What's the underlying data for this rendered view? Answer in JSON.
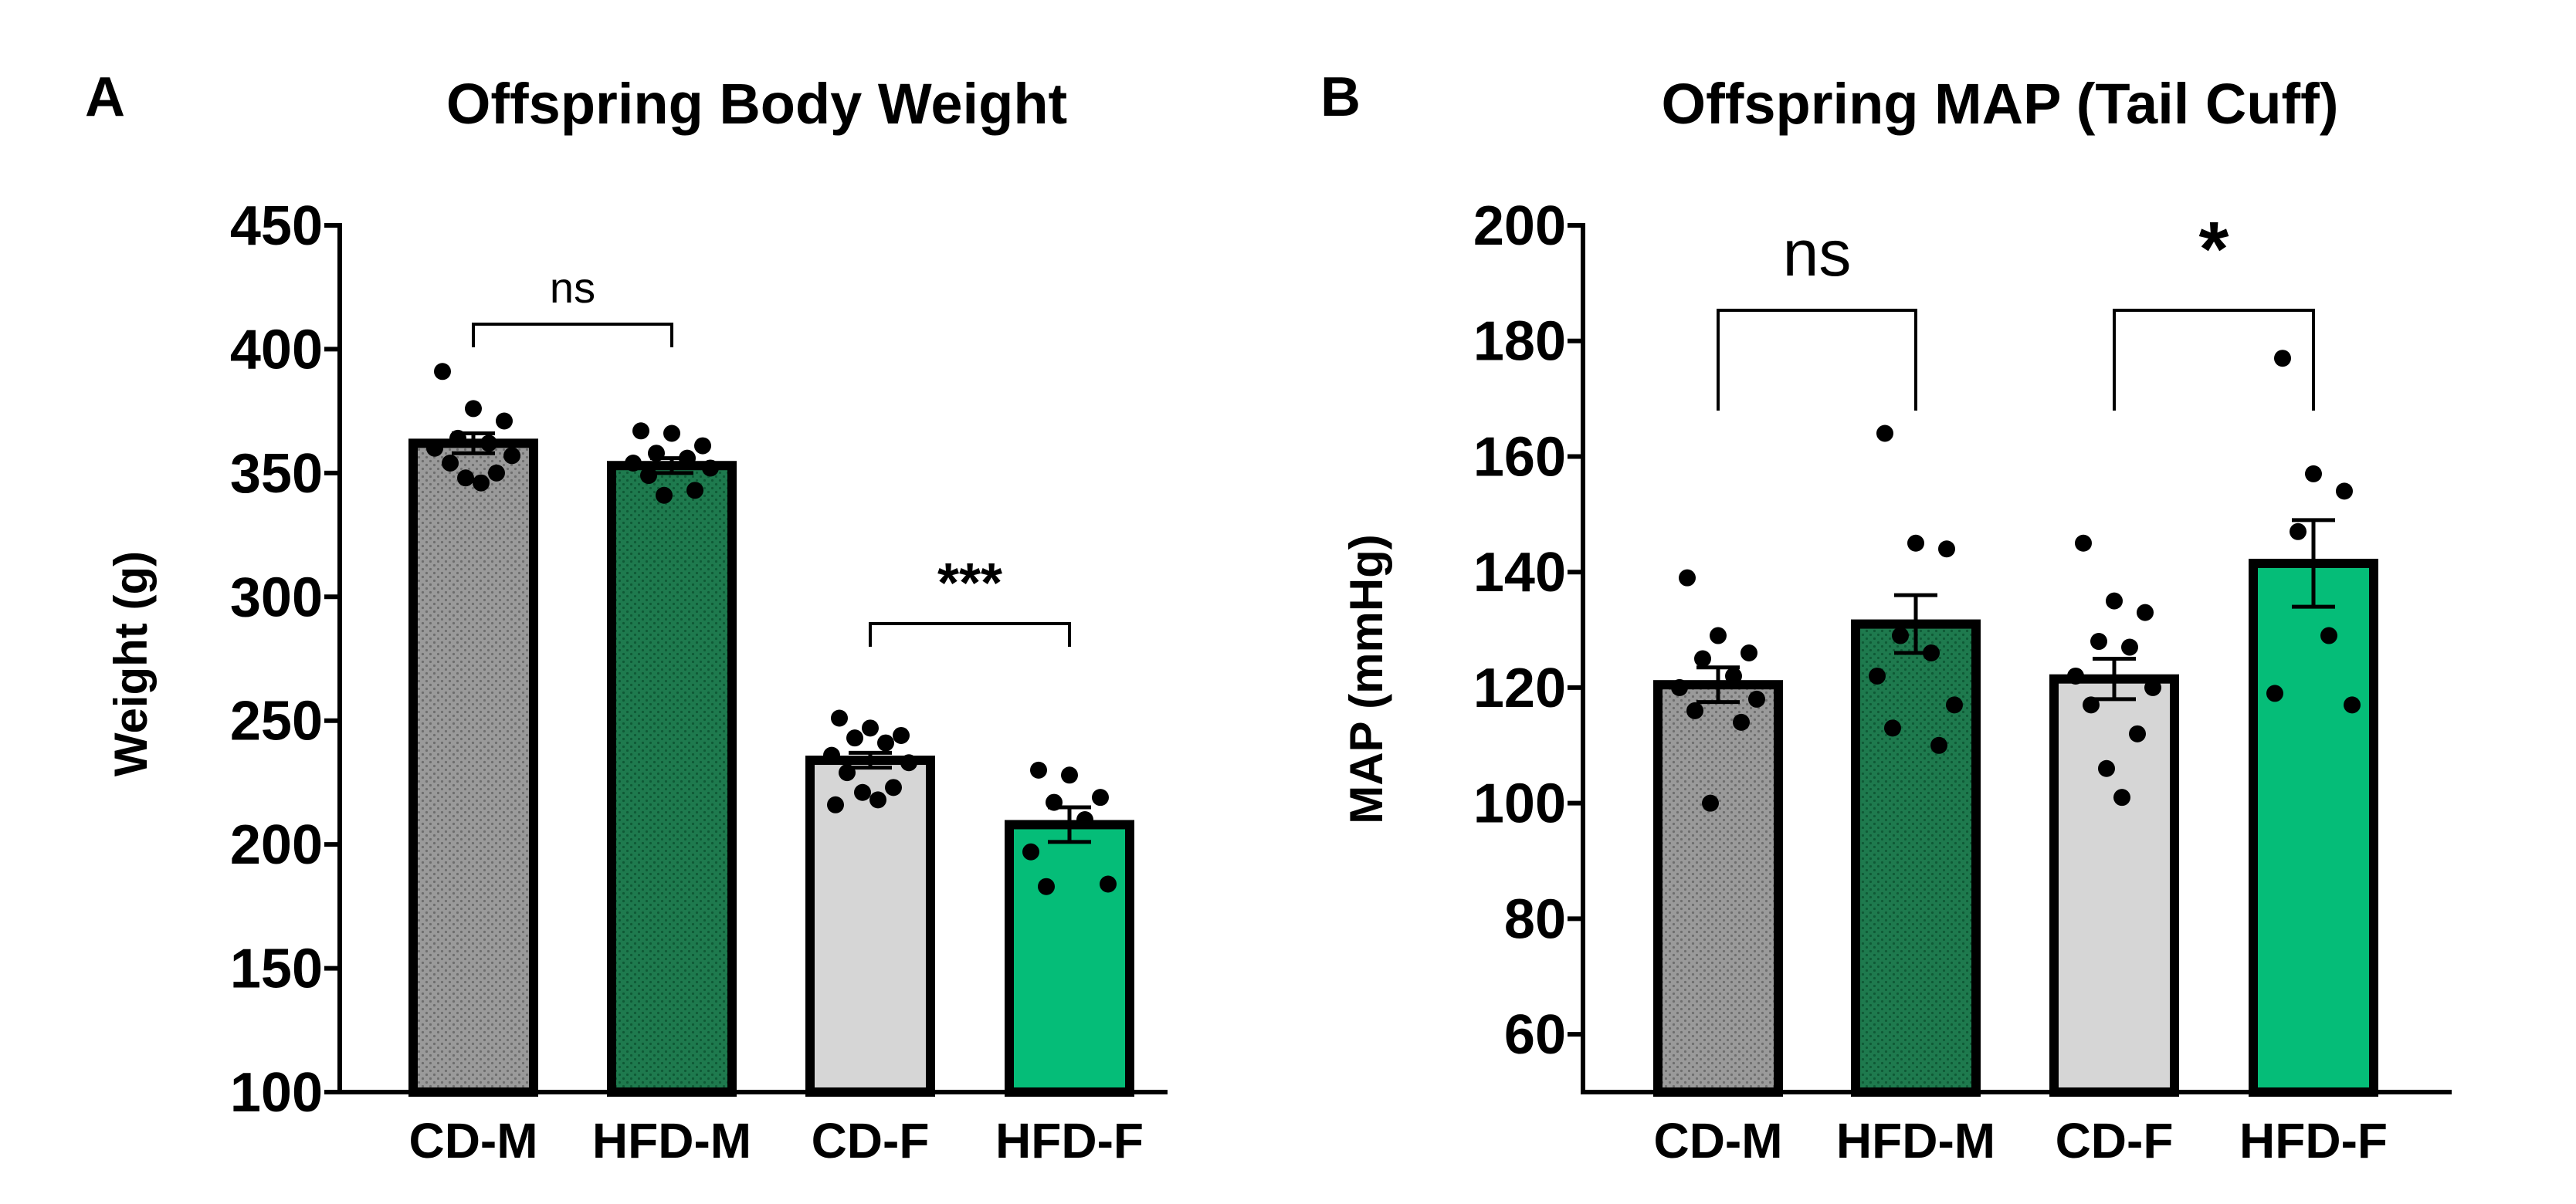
{
  "colors": {
    "cd_m": "#9a9a9a",
    "hfd_m": "#1e7a4e",
    "cd_f": "#d6d6d6",
    "hfd_f": "#05bd78",
    "stroke": "#000000"
  },
  "chart_data": [
    {
      "panel": "A",
      "type": "bar",
      "title": "Offspring Body Weight",
      "xlabel": "",
      "ylabel": "Weight (g)",
      "ylim": [
        100,
        450
      ],
      "yticks": [
        100,
        150,
        200,
        250,
        300,
        350,
        400,
        450
      ],
      "categories": [
        "CD-M",
        "HFD-M",
        "CD-F",
        "HFD-F"
      ],
      "values": [
        362,
        353,
        234,
        208
      ],
      "sem": [
        4,
        3,
        3,
        7
      ],
      "points": [
        [
          391,
          376,
          371,
          364,
          362,
          360,
          357,
          354,
          350,
          348,
          346
        ],
        [
          367,
          366,
          361,
          358,
          356,
          354,
          352,
          349,
          343,
          341
        ],
        [
          251,
          247,
          244,
          243,
          241,
          236,
          233,
          229,
          223,
          221,
          218,
          216
        ],
        [
          230,
          228,
          219,
          217,
          210,
          197,
          184,
          183
        ]
      ],
      "significance": [
        {
          "from": 0,
          "to": 1,
          "label": "ns"
        },
        {
          "from": 2,
          "to": 3,
          "label": "***"
        }
      ]
    },
    {
      "panel": "B",
      "type": "bar",
      "title": "Offspring MAP (Tail Cuff)",
      "xlabel": "",
      "ylabel": "MAP (mmHg)",
      "ylim": [
        50,
        200
      ],
      "yticks": [
        60,
        80,
        100,
        120,
        140,
        160,
        180,
        200
      ],
      "categories": [
        "CD-M",
        "HFD-M",
        "CD-F",
        "HFD-F"
      ],
      "values": [
        120.5,
        131,
        121.5,
        141.5
      ],
      "sem": [
        3,
        5,
        3.5,
        7.5
      ],
      "points": [
        [
          139,
          129,
          126,
          125,
          122,
          120,
          118,
          116,
          114,
          100
        ],
        [
          164,
          145,
          144,
          129,
          126,
          122,
          117,
          113,
          110
        ],
        [
          145,
          135,
          133,
          128,
          127,
          122,
          120,
          117,
          112,
          106,
          101
        ],
        [
          177,
          157,
          154,
          147,
          129,
          119,
          117
        ]
      ],
      "significance": [
        {
          "from": 0,
          "to": 1,
          "label": "ns"
        },
        {
          "from": 2,
          "to": 3,
          "label": "*"
        }
      ]
    }
  ]
}
